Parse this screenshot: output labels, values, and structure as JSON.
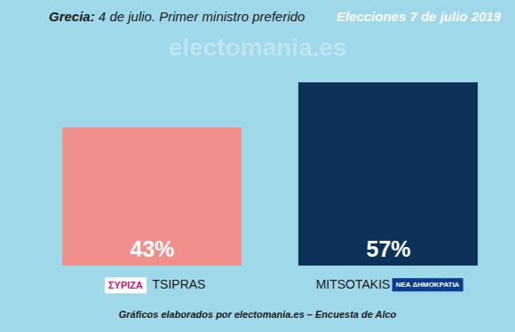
{
  "chart_data": {
    "type": "bar",
    "title": "Grecia: 4 de julio. Primer ministro preferido",
    "subtitle": "Elecciones 7 de julio 2019",
    "caption": "Gráficos elaborados por electomania.es – Encuesta de Alco",
    "watermark": "electomania.es",
    "categories": [
      "TSIPRAS",
      "MITSOTAKIS"
    ],
    "parties": [
      "ΣΥΡΙΖΑ",
      "ΝΕΑ ΔΗΜΟΚΡΑΤΙΑ"
    ],
    "values": [
      43,
      57
    ],
    "value_labels": [
      "43%",
      "57%"
    ],
    "colors": [
      "#f08f8c",
      "#0c3259"
    ],
    "ylim": [
      0,
      57
    ],
    "data_labels": true,
    "tick_labels": false
  }
}
